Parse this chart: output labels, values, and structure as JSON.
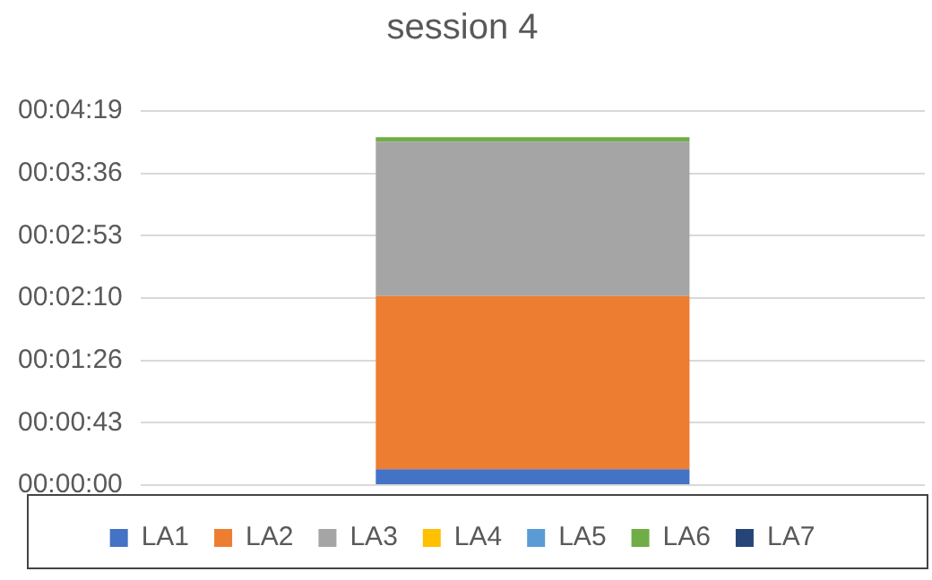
{
  "chart_data": {
    "type": "bar",
    "title": "session 4",
    "categories": [
      null
    ],
    "stacked": true,
    "series": [
      {
        "name": "LA1",
        "color": "#4472c4",
        "values": [
          11
        ]
      },
      {
        "name": "LA2",
        "color": "#ed7d31",
        "values": [
          120
        ]
      },
      {
        "name": "LA3",
        "color": "#a5a5a5",
        "values": [
          107
        ]
      },
      {
        "name": "LA4",
        "color": "#ffc000",
        "values": [
          0
        ]
      },
      {
        "name": "LA5",
        "color": "#5b9bd5",
        "values": [
          0
        ]
      },
      {
        "name": "LA6",
        "color": "#70ad47",
        "values": [
          3
        ]
      },
      {
        "name": "LA7",
        "color": "#264478",
        "values": [
          0
        ]
      }
    ],
    "ylim": [
      0,
      259.2
    ],
    "yticks": [
      {
        "value": 0,
        "label": "00:00:00"
      },
      {
        "value": 43.2,
        "label": "00:00:43"
      },
      {
        "value": 86.4,
        "label": "00:01:26"
      },
      {
        "value": 129.6,
        "label": "00:02:10"
      },
      {
        "value": 172.8,
        "label": "00:02:53"
      },
      {
        "value": 216,
        "label": "00:03:36"
      },
      {
        "value": 259.2,
        "label": "00:04:19"
      }
    ],
    "grid": "y",
    "legend": "bottom"
  }
}
